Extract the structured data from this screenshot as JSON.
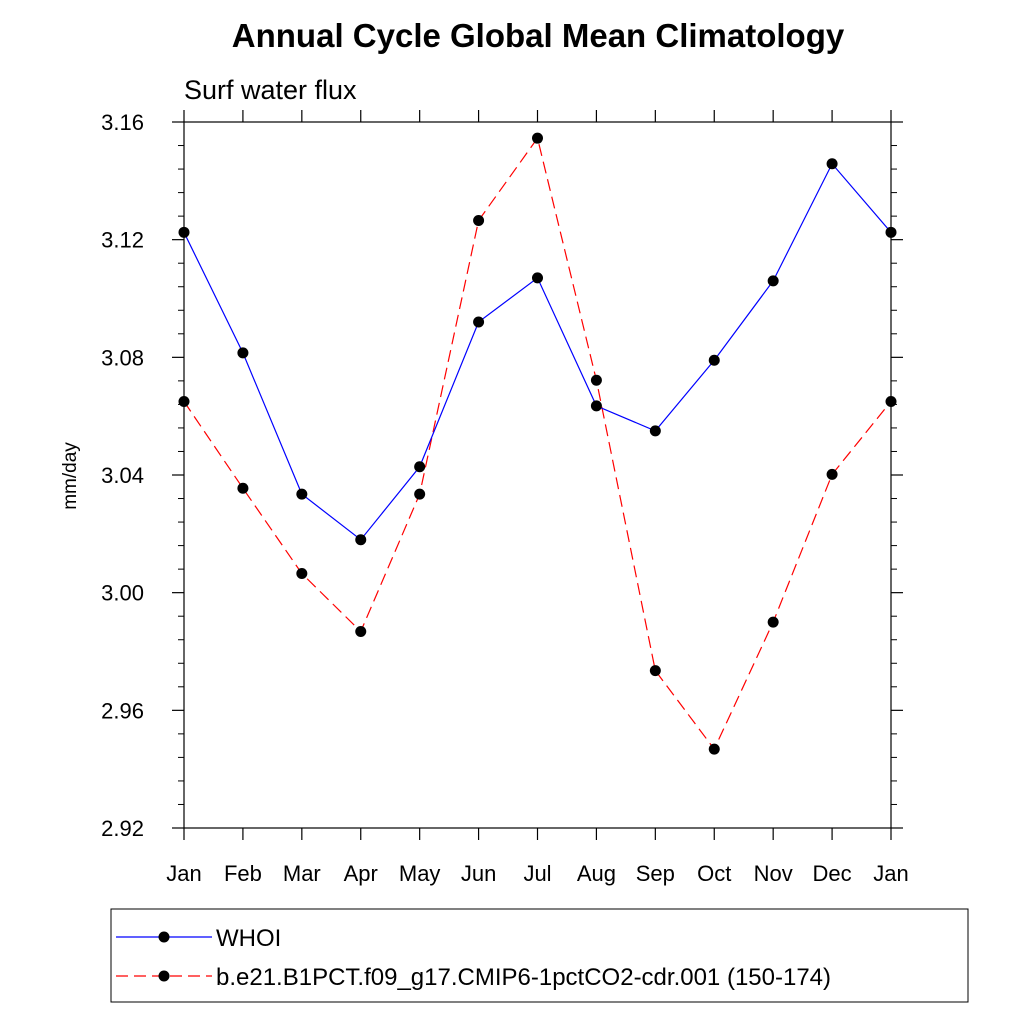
{
  "chart_data": {
    "type": "line",
    "title": "Annual Cycle Global Mean Climatology",
    "subtitle": "Surf water flux",
    "xlabel": "",
    "ylabel": "mm/day",
    "categories": [
      "Jan",
      "Feb",
      "Mar",
      "Apr",
      "May",
      "Jun",
      "Jul",
      "Aug",
      "Sep",
      "Oct",
      "Nov",
      "Dec",
      "Jan"
    ],
    "ylim": [
      2.92,
      3.16
    ],
    "yticks": [
      "3.16",
      "3.12",
      "3.08",
      "3.04",
      "3.00",
      "2.96",
      "2.92"
    ],
    "ytick_values": [
      3.16,
      3.12,
      3.08,
      3.04,
      3.0,
      2.96,
      2.92
    ],
    "ytick_minor_step": 0.008,
    "grid": false,
    "legend_position": "bottom",
    "series": [
      {
        "name": "WHOI",
        "color": "#0000ff",
        "style": "solid",
        "values": [
          3.1225,
          3.0815,
          3.0335,
          3.018,
          3.0428,
          3.092,
          3.107,
          3.0635,
          3.055,
          3.079,
          3.106,
          3.1458,
          3.1225
        ]
      },
      {
        "name": "b.e21.B1PCT.f09_g17.CMIP6-1pctCO2-cdr.001 (150-174)",
        "color": "#ff0000",
        "style": "dashed",
        "values": [
          3.065,
          3.0355,
          3.0065,
          2.9868,
          3.0335,
          3.1265,
          3.1545,
          3.0722,
          2.9735,
          2.9468,
          2.99,
          3.0402,
          3.065
        ]
      }
    ]
  }
}
